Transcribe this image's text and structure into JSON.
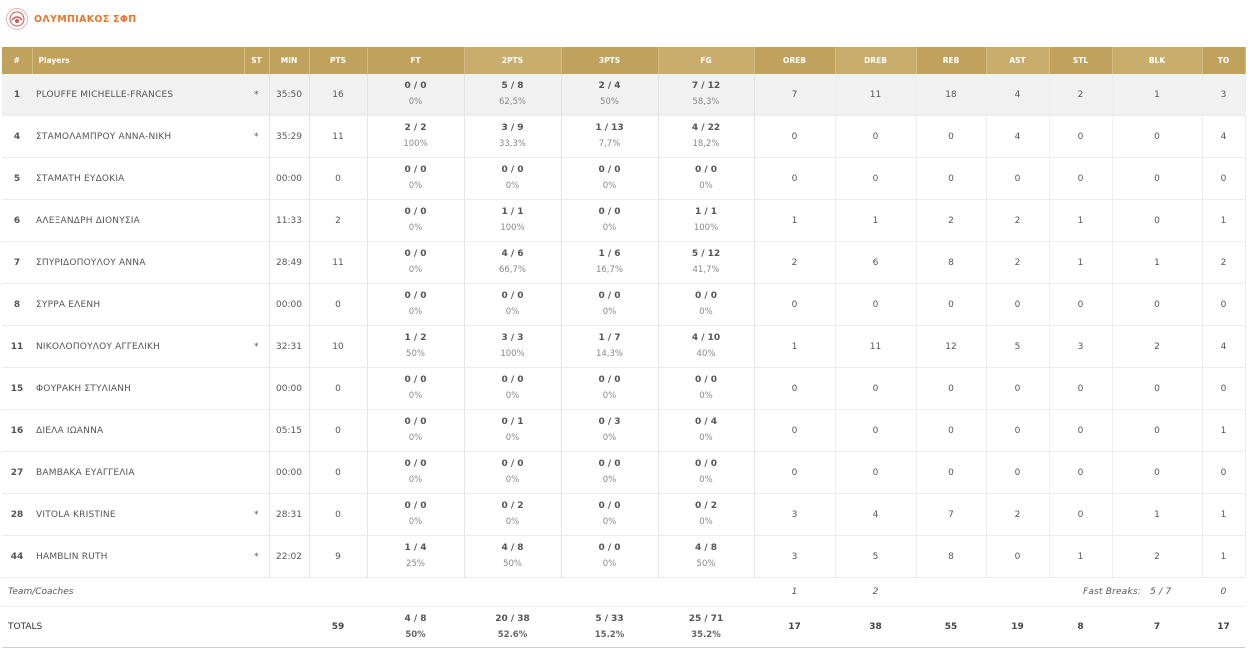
{
  "team": {
    "name": "ΟΛΥΜΠΙΑΚΟΣ ΣΦΠ",
    "logo_icon": "team-logo-icon",
    "accent_color": "#e8742a",
    "header_color": "#c0a25c"
  },
  "columns": {
    "num": "#",
    "players": "Players",
    "st": "ST",
    "min": "MIN",
    "pts": "PTS",
    "ft": "FT",
    "two": "2PTS",
    "three": "3PTS",
    "fg": "FG",
    "oreb": "OREB",
    "dreb": "DREB",
    "reb": "REB",
    "ast": "AST",
    "stl": "STL",
    "blk": "BLK",
    "to": "TO"
  },
  "players": [
    {
      "num": "1",
      "name": "PLOUFFE MICHELLE-FRANCES",
      "st": "*",
      "min": "35:50",
      "pts": "16",
      "ft": "0 / 0",
      "ft_pct": "0%",
      "two": "5 / 8",
      "two_pct": "62,5%",
      "three": "2 / 4",
      "three_pct": "50%",
      "fg": "7 / 12",
      "fg_pct": "58,3%",
      "oreb": "7",
      "dreb": "11",
      "reb": "18",
      "ast": "4",
      "stl": "2",
      "blk": "1",
      "to": "3"
    },
    {
      "num": "4",
      "name": "ΣΤΑΜΟΛΑΜΠΡΟΥ ΑΝΝΑ-ΝΙΚΗ",
      "st": "*",
      "min": "35:29",
      "pts": "11",
      "ft": "2 / 2",
      "ft_pct": "100%",
      "two": "3 / 9",
      "two_pct": "33,3%",
      "three": "1 / 13",
      "three_pct": "7,7%",
      "fg": "4 / 22",
      "fg_pct": "18,2%",
      "oreb": "0",
      "dreb": "0",
      "reb": "0",
      "ast": "4",
      "stl": "0",
      "blk": "0",
      "to": "4"
    },
    {
      "num": "5",
      "name": "ΣΤΑΜΑΤΗ ΕΥΔΟΚΙΑ",
      "st": "",
      "min": "00:00",
      "pts": "0",
      "ft": "0 / 0",
      "ft_pct": "0%",
      "two": "0 / 0",
      "two_pct": "0%",
      "three": "0 / 0",
      "three_pct": "0%",
      "fg": "0 / 0",
      "fg_pct": "0%",
      "oreb": "0",
      "dreb": "0",
      "reb": "0",
      "ast": "0",
      "stl": "0",
      "blk": "0",
      "to": "0"
    },
    {
      "num": "6",
      "name": "ΑΛΕΞΑΝΔΡΗ ΔΙΟΝΥΣΙΑ",
      "st": "",
      "min": "11:33",
      "pts": "2",
      "ft": "0 / 0",
      "ft_pct": "0%",
      "two": "1 / 1",
      "two_pct": "100%",
      "three": "0 / 0",
      "three_pct": "0%",
      "fg": "1 / 1",
      "fg_pct": "100%",
      "oreb": "1",
      "dreb": "1",
      "reb": "2",
      "ast": "2",
      "stl": "1",
      "blk": "0",
      "to": "1"
    },
    {
      "num": "7",
      "name": "ΣΠΥΡΙΔΟΠΟΥΛΟΥ ΑΝΝΑ",
      "st": "",
      "min": "28:49",
      "pts": "11",
      "ft": "0 / 0",
      "ft_pct": "0%",
      "two": "4 / 6",
      "two_pct": "66,7%",
      "three": "1 / 6",
      "three_pct": "16,7%",
      "fg": "5 / 12",
      "fg_pct": "41,7%",
      "oreb": "2",
      "dreb": "6",
      "reb": "8",
      "ast": "2",
      "stl": "1",
      "blk": "1",
      "to": "2"
    },
    {
      "num": "8",
      "name": "ΣΥΡΡΑ ΕΛΕΝΗ",
      "st": "",
      "min": "00:00",
      "pts": "0",
      "ft": "0 / 0",
      "ft_pct": "0%",
      "two": "0 / 0",
      "two_pct": "0%",
      "three": "0 / 0",
      "three_pct": "0%",
      "fg": "0 / 0",
      "fg_pct": "0%",
      "oreb": "0",
      "dreb": "0",
      "reb": "0",
      "ast": "0",
      "stl": "0",
      "blk": "0",
      "to": "0"
    },
    {
      "num": "11",
      "name": "ΝΙΚΟΛΟΠΟΥΛΟΥ ΑΓΓΕΛΙΚΗ",
      "st": "*",
      "min": "32:31",
      "pts": "10",
      "ft": "1 / 2",
      "ft_pct": "50%",
      "two": "3 / 3",
      "two_pct": "100%",
      "three": "1 / 7",
      "three_pct": "14,3%",
      "fg": "4 / 10",
      "fg_pct": "40%",
      "oreb": "1",
      "dreb": "11",
      "reb": "12",
      "ast": "5",
      "stl": "3",
      "blk": "2",
      "to": "4"
    },
    {
      "num": "15",
      "name": "ΦΟΥΡΑΚΗ ΣΤΥΛΙΑΝΗ",
      "st": "",
      "min": "00:00",
      "pts": "0",
      "ft": "0 / 0",
      "ft_pct": "0%",
      "two": "0 / 0",
      "two_pct": "0%",
      "three": "0 / 0",
      "three_pct": "0%",
      "fg": "0 / 0",
      "fg_pct": "0%",
      "oreb": "0",
      "dreb": "0",
      "reb": "0",
      "ast": "0",
      "stl": "0",
      "blk": "0",
      "to": "0"
    },
    {
      "num": "16",
      "name": "ΔΙΕΛΑ ΙΩΑΝΝΑ",
      "st": "",
      "min": "05:15",
      "pts": "0",
      "ft": "0 / 0",
      "ft_pct": "0%",
      "two": "0 / 1",
      "two_pct": "0%",
      "three": "0 / 3",
      "three_pct": "0%",
      "fg": "0 / 4",
      "fg_pct": "0%",
      "oreb": "0",
      "dreb": "0",
      "reb": "0",
      "ast": "0",
      "stl": "0",
      "blk": "0",
      "to": "1"
    },
    {
      "num": "27",
      "name": "ΒΑΜΒΑΚΑ ΕΥΑΓΓΕΛΙΑ",
      "st": "",
      "min": "00:00",
      "pts": "0",
      "ft": "0 / 0",
      "ft_pct": "0%",
      "two": "0 / 0",
      "two_pct": "0%",
      "three": "0 / 0",
      "three_pct": "0%",
      "fg": "0 / 0",
      "fg_pct": "0%",
      "oreb": "0",
      "dreb": "0",
      "reb": "0",
      "ast": "0",
      "stl": "0",
      "blk": "0",
      "to": "0"
    },
    {
      "num": "28",
      "name": "VITOLA KRISTINE",
      "st": "*",
      "min": "28:31",
      "pts": "0",
      "ft": "0 / 0",
      "ft_pct": "0%",
      "two": "0 / 2",
      "two_pct": "0%",
      "three": "0 / 0",
      "three_pct": "0%",
      "fg": "0 / 2",
      "fg_pct": "0%",
      "oreb": "3",
      "dreb": "4",
      "reb": "7",
      "ast": "2",
      "stl": "0",
      "blk": "1",
      "to": "1"
    },
    {
      "num": "44",
      "name": "HAMBLIN RUTH",
      "st": "*",
      "min": "22:02",
      "pts": "9",
      "ft": "1 / 4",
      "ft_pct": "25%",
      "two": "4 / 8",
      "two_pct": "50%",
      "three": "0 / 0",
      "three_pct": "0%",
      "fg": "4 / 8",
      "fg_pct": "50%",
      "oreb": "3",
      "dreb": "5",
      "reb": "8",
      "ast": "0",
      "stl": "1",
      "blk": "2",
      "to": "1"
    }
  ],
  "team_coaches": {
    "label": "Team/Coaches",
    "oreb": "1",
    "dreb": "2",
    "fast_breaks_label": "Fast Breaks:",
    "fast_breaks_value": "5 / 7",
    "to": "0"
  },
  "totals": {
    "label": "TOTALS",
    "pts": "59",
    "ft": "4 / 8",
    "ft_pct": "50%",
    "two": "20 / 38",
    "two_pct": "52.6%",
    "three": "5 / 33",
    "three_pct": "15.2%",
    "fg": "25 / 71",
    "fg_pct": "35.2%",
    "oreb": "17",
    "dreb": "38",
    "reb": "55",
    "ast": "19",
    "stl": "8",
    "blk": "7",
    "to": "17"
  }
}
